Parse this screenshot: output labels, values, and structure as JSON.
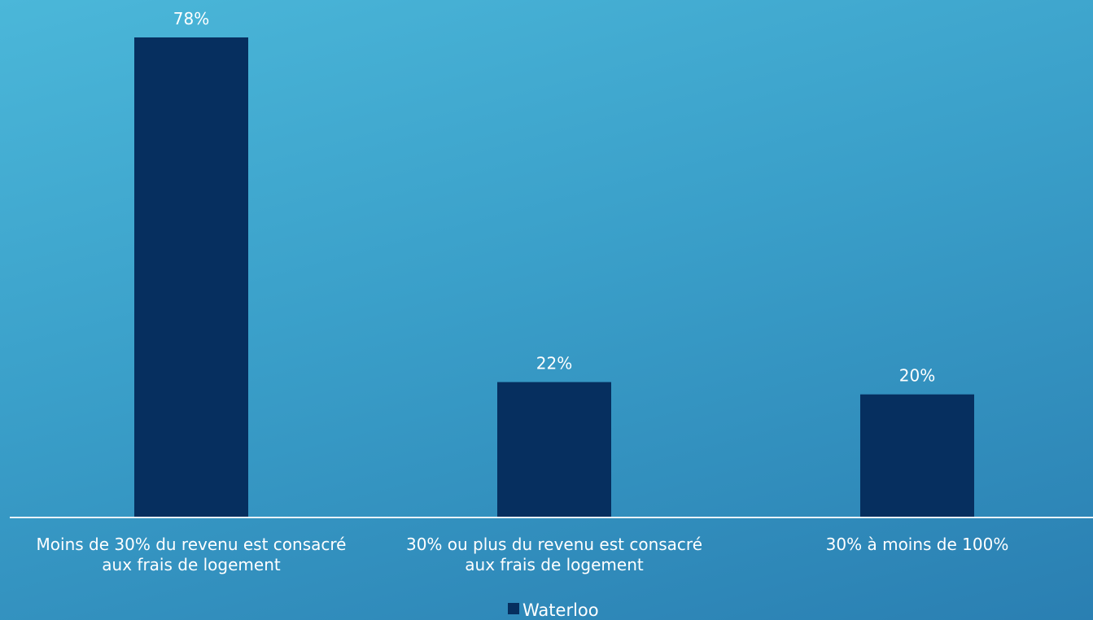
{
  "chart_data": {
    "type": "bar",
    "categories": [
      [
        "Moins de 30% du revenu est consacré",
        "aux frais de logement"
      ],
      [
        "30% ou plus du revenu est consacré",
        "aux frais de logement"
      ],
      [
        "30% à moins de 100%"
      ]
    ],
    "series": [
      {
        "name": "Waterloo",
        "values": [
          78,
          22,
          20
        ],
        "labels": [
          "78%",
          "22%",
          "20%"
        ],
        "color": "#062f5f"
      }
    ],
    "ylim": [
      0,
      78
    ],
    "grid": false,
    "legend_position": "bottom"
  }
}
